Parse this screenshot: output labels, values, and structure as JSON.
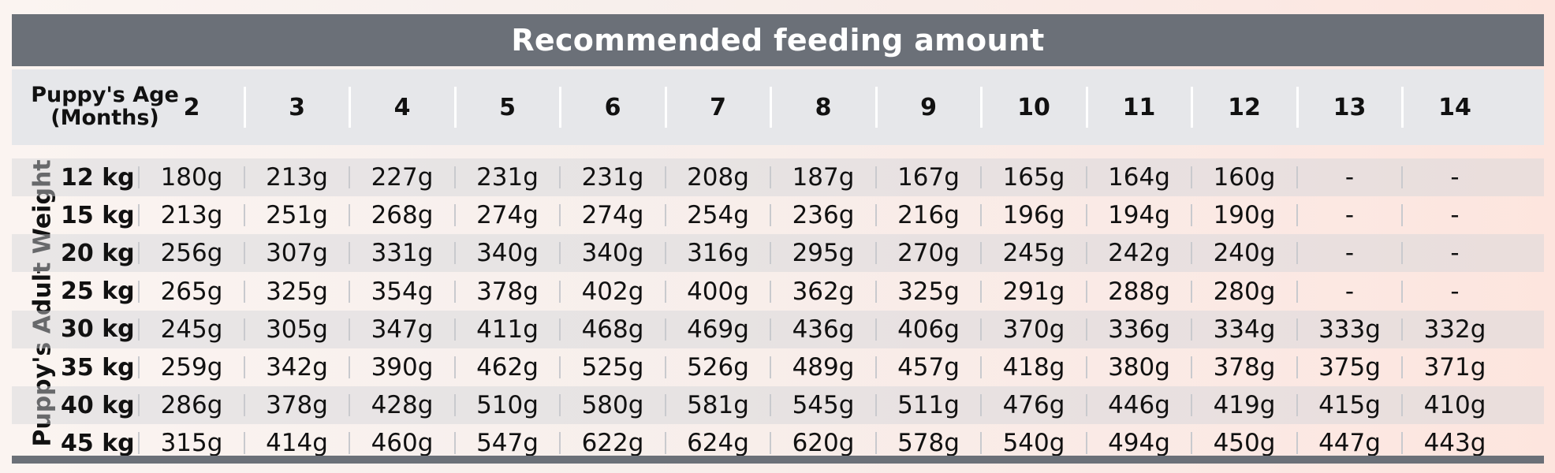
{
  "title": "Recommended feeding amount",
  "header": {
    "age_label_line1": "Puppy's Age",
    "age_label_line2": "(Months)",
    "months": [
      "2",
      "3",
      "4",
      "5",
      "6",
      "7",
      "8",
      "9",
      "10",
      "11",
      "12",
      "13",
      "14"
    ]
  },
  "side_label": "Puppy's Adult Weight",
  "rows": [
    {
      "weight": "12 kg",
      "values": [
        "180g",
        "213g",
        "227g",
        "231g",
        "231g",
        "208g",
        "187g",
        "167g",
        "165g",
        "164g",
        "160g",
        "-",
        "-"
      ]
    },
    {
      "weight": "15 kg",
      "values": [
        "213g",
        "251g",
        "268g",
        "274g",
        "274g",
        "254g",
        "236g",
        "216g",
        "196g",
        "194g",
        "190g",
        "-",
        "-"
      ]
    },
    {
      "weight": "20 kg",
      "values": [
        "256g",
        "307g",
        "331g",
        "340g",
        "340g",
        "316g",
        "295g",
        "270g",
        "245g",
        "242g",
        "240g",
        "-",
        "-"
      ]
    },
    {
      "weight": "25 kg",
      "values": [
        "265g",
        "325g",
        "354g",
        "378g",
        "402g",
        "400g",
        "362g",
        "325g",
        "291g",
        "288g",
        "280g",
        "-",
        "-"
      ]
    },
    {
      "weight": "30 kg",
      "values": [
        "245g",
        "305g",
        "347g",
        "411g",
        "468g",
        "469g",
        "436g",
        "406g",
        "370g",
        "336g",
        "334g",
        "333g",
        "332g"
      ]
    },
    {
      "weight": "35 kg",
      "values": [
        "259g",
        "342g",
        "390g",
        "462g",
        "525g",
        "526g",
        "489g",
        "457g",
        "418g",
        "380g",
        "378g",
        "375g",
        "371g"
      ]
    },
    {
      "weight": "40 kg",
      "values": [
        "286g",
        "378g",
        "428g",
        "510g",
        "580g",
        "581g",
        "545g",
        "511g",
        "476g",
        "446g",
        "419g",
        "415g",
        "410g"
      ]
    },
    {
      "weight": "45 kg",
      "values": [
        "315g",
        "414g",
        "460g",
        "547g",
        "622g",
        "624g",
        "620g",
        "578g",
        "540g",
        "494g",
        "450g",
        "447g",
        "443g"
      ]
    }
  ],
  "colors": {
    "title_bar": "#6b7078",
    "header_bg": "#e6e7ea",
    "text": "#111111"
  }
}
